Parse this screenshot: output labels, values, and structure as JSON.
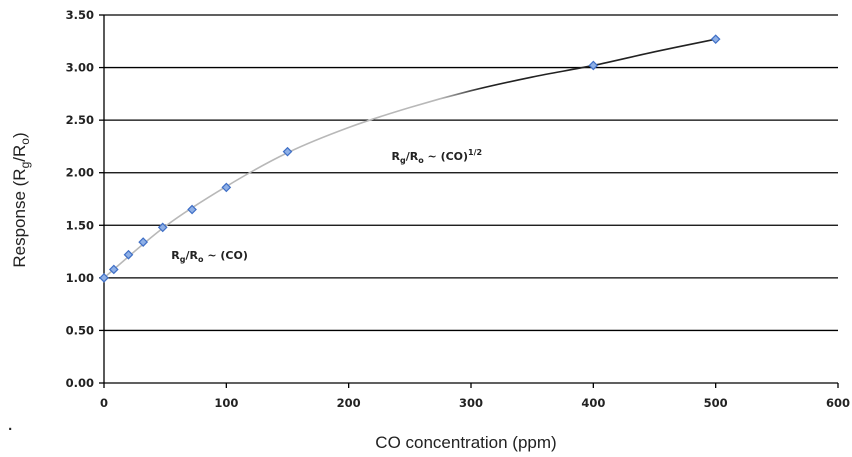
{
  "chart_data": {
    "type": "scatter",
    "xlabel": "CO concentration (ppm)",
    "ylabel": {
      "main": "Response (R",
      "sub1": "g",
      "mid": "/R",
      "sub2": "o",
      "end": ")"
    },
    "xlim": [
      0,
      600
    ],
    "ylim": [
      0,
      3.5
    ],
    "x_ticks": [
      "0",
      "100",
      "200",
      "300",
      "400",
      "500",
      "600"
    ],
    "y_ticks": [
      "0.00",
      "0.50",
      "1.00",
      "1.50",
      "2.00",
      "2.50",
      "3.00",
      "3.50"
    ],
    "grid": "horizontal",
    "series": [
      {
        "x": [
          0,
          8,
          20,
          32,
          48,
          72,
          100,
          150,
          400,
          500
        ],
        "y": [
          1.0,
          1.08,
          1.22,
          1.34,
          1.48,
          1.65,
          1.86,
          2.2,
          3.02,
          3.27
        ]
      }
    ],
    "trend": {
      "x": [
        0,
        50,
        100,
        150,
        200,
        250,
        300,
        350,
        400,
        450,
        500
      ],
      "y": [
        1.0,
        1.49,
        1.87,
        2.19,
        2.43,
        2.62,
        2.78,
        2.91,
        3.02,
        3.15,
        3.27
      ]
    },
    "annotations": [
      {
        "label": {
          "a": "R",
          "a_sub": "g",
          "b": "/R",
          "b_sub": "o",
          "c": " ~ (CO)"
        },
        "at": [
          55,
          1.18
        ]
      },
      {
        "label": {
          "a": "R",
          "a_sub": "g",
          "b": "/R",
          "b_sub": "o",
          "c": " ~ (CO)",
          "sup": "1/2"
        },
        "at": [
          235,
          2.12
        ]
      }
    ],
    "stray_mark": "."
  },
  "colors": {
    "marker_fill": "#8fb0e6",
    "marker_stroke": "#3f6fc6",
    "grid": "#000000",
    "trend_light": "#b8b8b8",
    "trend_dark": "#222222"
  }
}
